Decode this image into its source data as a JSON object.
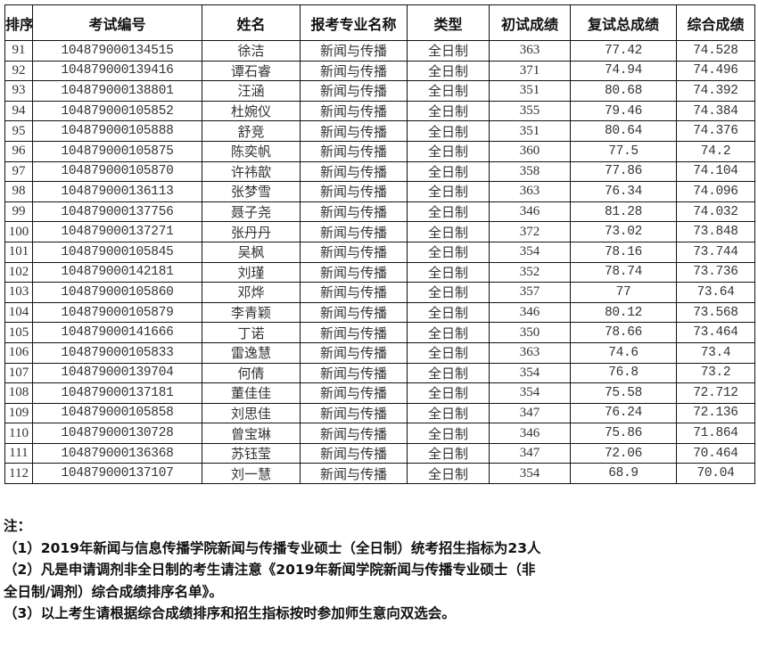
{
  "table": {
    "headers": [
      "排序",
      "考试编号",
      "姓名",
      "报考专业名称",
      "类型",
      "初试成绩",
      "复试总成绩",
      "综合成绩"
    ],
    "rows": [
      [
        "91",
        "104879000134515",
        "徐洁",
        "新闻与传播",
        "全日制",
        "363",
        "77.42",
        "74.528"
      ],
      [
        "92",
        "104879000139416",
        "谭石睿",
        "新闻与传播",
        "全日制",
        "371",
        "74.94",
        "74.496"
      ],
      [
        "93",
        "104879000138801",
        "汪涵",
        "新闻与传播",
        "全日制",
        "351",
        "80.68",
        "74.392"
      ],
      [
        "94",
        "104879000105852",
        "杜婉仪",
        "新闻与传播",
        "全日制",
        "355",
        "79.46",
        "74.384"
      ],
      [
        "95",
        "104879000105888",
        "舒竞",
        "新闻与传播",
        "全日制",
        "351",
        "80.64",
        "74.376"
      ],
      [
        "96",
        "104879000105875",
        "陈奕帆",
        "新闻与传播",
        "全日制",
        "360",
        "77.5",
        "74.2"
      ],
      [
        "97",
        "104879000105870",
        "许祎歆",
        "新闻与传播",
        "全日制",
        "358",
        "77.86",
        "74.104"
      ],
      [
        "98",
        "104879000136113",
        "张梦雪",
        "新闻与传播",
        "全日制",
        "363",
        "76.34",
        "74.096"
      ],
      [
        "99",
        "104879000137756",
        "聂子尧",
        "新闻与传播",
        "全日制",
        "346",
        "81.28",
        "74.032"
      ],
      [
        "100",
        "104879000137271",
        "张丹丹",
        "新闻与传播",
        "全日制",
        "372",
        "73.02",
        "73.848"
      ],
      [
        "101",
        "104879000105845",
        "吴枫",
        "新闻与传播",
        "全日制",
        "354",
        "78.16",
        "73.744"
      ],
      [
        "102",
        "104879000142181",
        "刘瑾",
        "新闻与传播",
        "全日制",
        "352",
        "78.74",
        "73.736"
      ],
      [
        "103",
        "104879000105860",
        "邓烨",
        "新闻与传播",
        "全日制",
        "357",
        "77",
        "73.64"
      ],
      [
        "104",
        "104879000105879",
        "李青颖",
        "新闻与传播",
        "全日制",
        "346",
        "80.12",
        "73.568"
      ],
      [
        "105",
        "104879000141666",
        "丁诺",
        "新闻与传播",
        "全日制",
        "350",
        "78.66",
        "73.464"
      ],
      [
        "106",
        "104879000105833",
        "雷逸慧",
        "新闻与传播",
        "全日制",
        "363",
        "74.6",
        "73.4"
      ],
      [
        "107",
        "104879000139704",
        "何倩",
        "新闻与传播",
        "全日制",
        "354",
        "76.8",
        "73.2"
      ],
      [
        "108",
        "104879000137181",
        "董佳佳",
        "新闻与传播",
        "全日制",
        "354",
        "75.58",
        "72.712"
      ],
      [
        "109",
        "104879000105858",
        "刘思佳",
        "新闻与传播",
        "全日制",
        "347",
        "76.24",
        "72.136"
      ],
      [
        "110",
        "104879000130728",
        "曾宝琳",
        "新闻与传播",
        "全日制",
        "346",
        "75.86",
        "71.864"
      ],
      [
        "111",
        "104879000136368",
        "苏钰莹",
        "新闻与传播",
        "全日制",
        "347",
        "72.06",
        "70.464"
      ],
      [
        "112",
        "104879000137107",
        "刘一慧",
        "新闻与传播",
        "全日制",
        "354",
        "68.9",
        "70.04"
      ]
    ]
  },
  "notes": {
    "title": "注：",
    "lines": [
      "（1）2019年新闻与信息传播学院新闻与传播专业硕士（全日制）统考招生指标为23人",
      "（2）凡是申请调剂非全日制的考生请注意《2019年新闻学院新闻与传播专业硕士（非",
      "全日制/调剂）综合成绩排序名单》。",
      "（3）以上考生请根据综合成绩排序和招生指标按时参加师生意向双选会。"
    ]
  }
}
